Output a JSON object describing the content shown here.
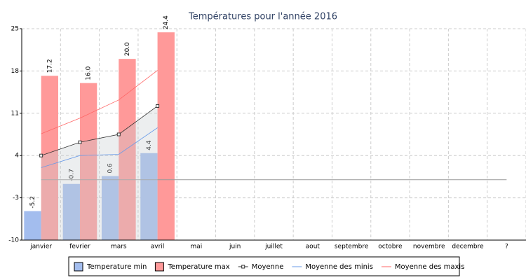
{
  "chart_data": {
    "type": "bar",
    "title": "Températures pour l'année 2016",
    "categories": [
      "janvier",
      "fevrier",
      "mars",
      "avril",
      "mai",
      "juin",
      "juillet",
      "aout",
      "septembre",
      "octobre",
      "novembre",
      "decembre",
      "?"
    ],
    "series": [
      {
        "name": "Temperature min",
        "type": "bar",
        "color": "#a3bdee",
        "values": [
          -5.2,
          -0.7,
          0.6,
          4.4,
          null,
          null,
          null,
          null,
          null,
          null,
          null,
          null,
          null
        ]
      },
      {
        "name": "Temperature max",
        "type": "bar",
        "color": "#ff9999",
        "values": [
          17.2,
          16.0,
          20.0,
          24.4,
          null,
          null,
          null,
          null,
          null,
          null,
          null,
          null,
          null
        ],
        "value_labels": [
          "17.2",
          "16.0",
          "20.0",
          "24.4",
          null,
          null,
          null,
          null,
          null,
          null,
          null,
          null,
          null
        ]
      },
      {
        "name": "Moyenne",
        "type": "line",
        "color": "#333333",
        "markers": true,
        "area": true,
        "values": [
          4,
          6.2,
          7.5,
          12.2,
          null,
          null,
          null,
          null,
          null,
          null,
          null,
          null,
          null
        ]
      },
      {
        "name": "Moyenne des minis",
        "type": "line",
        "color": "#6a9be8",
        "values": [
          2,
          4,
          4.2,
          8.6,
          null,
          null,
          null,
          null,
          null,
          null,
          null,
          null,
          null
        ]
      },
      {
        "name": "Moyenne des maxis",
        "type": "line",
        "color": "#ff6666",
        "values": [
          7.6,
          10.2,
          13.2,
          18.1,
          null,
          null,
          null,
          null,
          null,
          null,
          null,
          null,
          null
        ]
      }
    ],
    "hline": 0,
    "ylim": [
      -10,
      25
    ],
    "yticks": [
      -10,
      -3,
      4,
      11,
      18,
      25
    ],
    "grid": true
  }
}
